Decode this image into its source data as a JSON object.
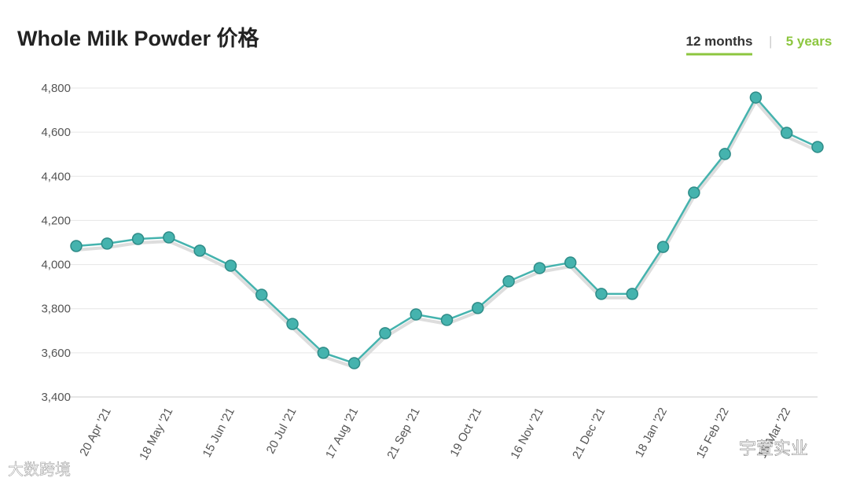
{
  "chart_data": {
    "type": "line",
    "title": "Whole Milk Powder 价格",
    "tabs": [
      "12 months",
      "5 years"
    ],
    "watermarks": [
      "大数跨境",
      "宇萱实业"
    ],
    "categories": [
      null,
      "20 Apr '21",
      null,
      "18 May '21",
      null,
      "15 Jun '21",
      null,
      "20 Jul '21",
      null,
      "17 Aug '21",
      null,
      "21 Sep '21",
      null,
      "19 Oct '21",
      null,
      "16 Nov '21",
      null,
      "21 Dec '21",
      null,
      "18 Jan '22",
      null,
      "15 Feb '22",
      null,
      "15 Mar '22",
      null
    ],
    "series": [
      {
        "name": "Whole Milk Powder",
        "color": "#45b3ae",
        "values": [
          4084,
          4095,
          4116,
          4123,
          4063,
          3995,
          3863,
          3731,
          3600,
          3553,
          3689,
          3774,
          3749,
          3803,
          3924,
          3984,
          4009,
          3867,
          3867,
          4080,
          4326,
          4501,
          4757,
          4597,
          4533
        ]
      }
    ],
    "ylim": [
      3400,
      4800
    ],
    "yticks": [
      {
        "value": 3400,
        "label": "3,400"
      },
      {
        "value": 3600,
        "label": "3,600"
      },
      {
        "value": 3800,
        "label": "3,800"
      },
      {
        "value": 4000,
        "label": "4,000"
      },
      {
        "value": 4200,
        "label": "4,200"
      },
      {
        "value": 4400,
        "label": "4,400"
      },
      {
        "value": 4600,
        "label": "4,600"
      },
      {
        "value": 4800,
        "label": "4,800"
      }
    ],
    "grid": true
  }
}
